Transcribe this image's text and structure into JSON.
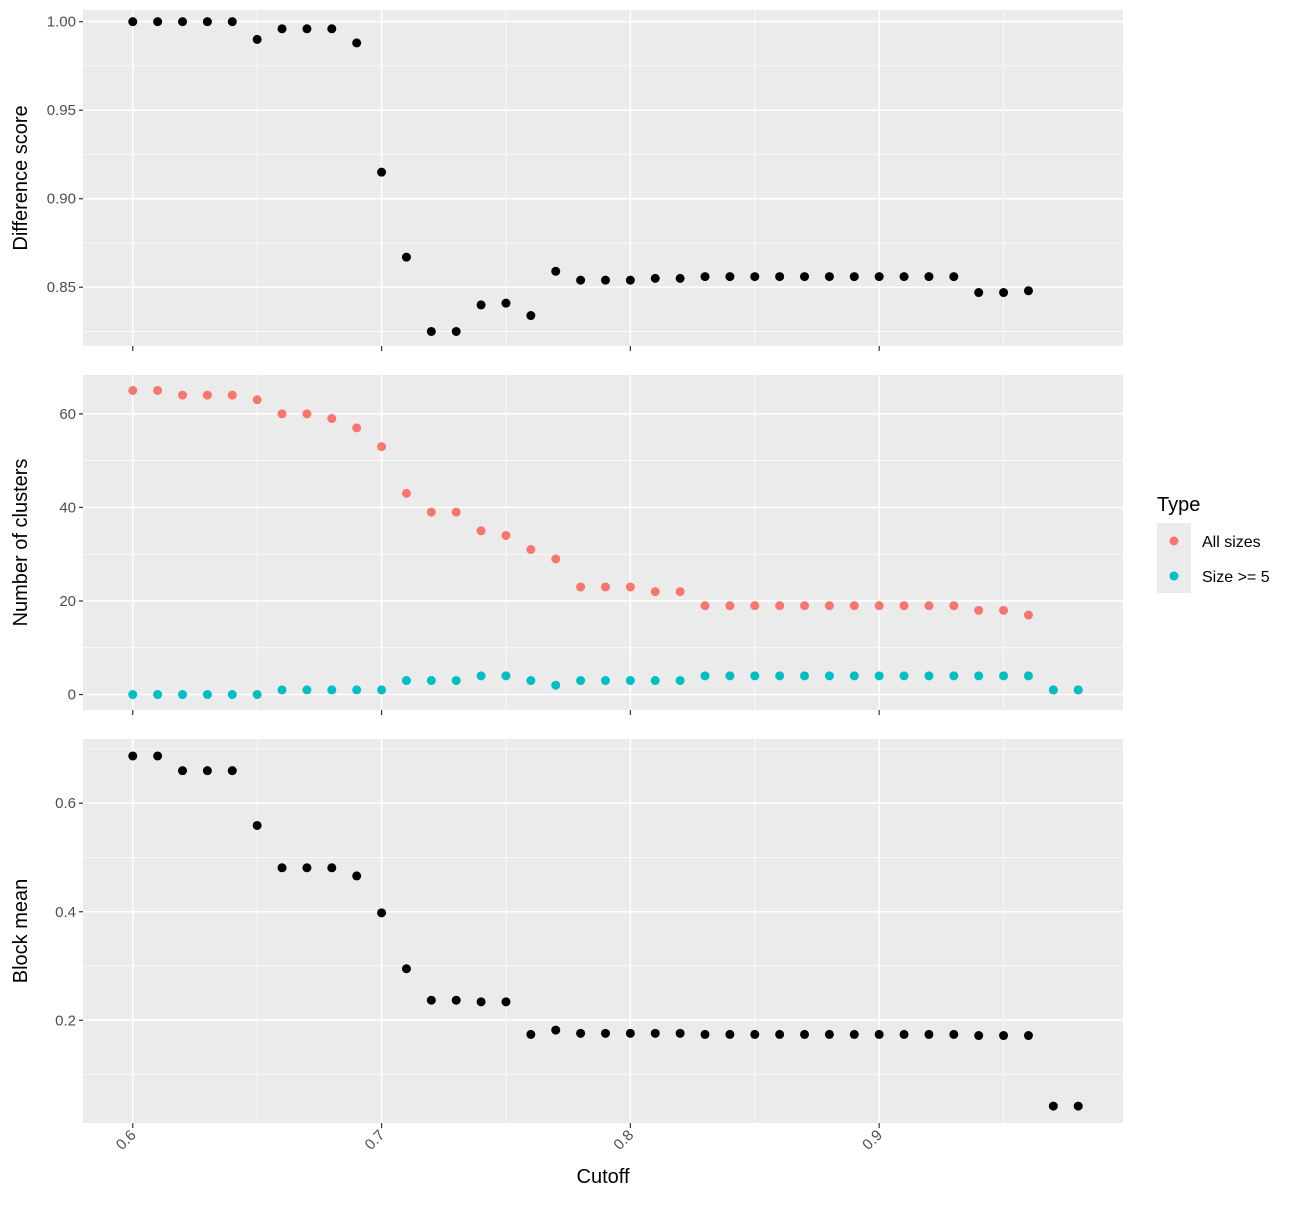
{
  "chart_data": [
    {
      "type": "scatter",
      "ylabel": "Difference score",
      "xlim": [
        0.58,
        0.998
      ],
      "ylim": [
        0.8168,
        1.0066
      ],
      "yticks": [
        0.85,
        0.9,
        0.95,
        1.0
      ],
      "ytick_labels": [
        "0.85",
        "0.90",
        "0.95",
        "1.00"
      ],
      "xticks": [
        0.6,
        0.7,
        0.8,
        0.9
      ],
      "grid": true,
      "series": [
        {
          "color": "#000000",
          "x": [
            0.6,
            0.61,
            0.62,
            0.63,
            0.64,
            0.65,
            0.66,
            0.67,
            0.68,
            0.69,
            0.7,
            0.71,
            0.72,
            0.73,
            0.74,
            0.75,
            0.76,
            0.77,
            0.78,
            0.79,
            0.8,
            0.81,
            0.82,
            0.83,
            0.84,
            0.85,
            0.86,
            0.87,
            0.88,
            0.89,
            0.9,
            0.91,
            0.92,
            0.93,
            0.94,
            0.95,
            0.96
          ],
          "y": [
            1.0,
            1.0,
            1.0,
            1.0,
            1.0,
            0.99,
            0.996,
            0.996,
            0.996,
            0.988,
            0.915,
            0.867,
            0.825,
            0.825,
            0.84,
            0.841,
            0.834,
            0.859,
            0.854,
            0.854,
            0.854,
            0.855,
            0.855,
            0.856,
            0.856,
            0.856,
            0.856,
            0.856,
            0.856,
            0.856,
            0.856,
            0.856,
            0.856,
            0.856,
            0.847,
            0.847,
            0.848
          ]
        }
      ]
    },
    {
      "type": "scatter",
      "ylabel": "Number of clusters",
      "xlim": [
        0.58,
        0.998
      ],
      "ylim": [
        -3.3,
        68.3
      ],
      "yticks": [
        0,
        20,
        40,
        60
      ],
      "ytick_labels": [
        "0",
        "20",
        "40",
        "60"
      ],
      "xticks": [
        0.6,
        0.7,
        0.8,
        0.9
      ],
      "grid": true,
      "series": [
        {
          "name": "All sizes",
          "color": "#F8766D",
          "x": [
            0.6,
            0.61,
            0.62,
            0.63,
            0.64,
            0.65,
            0.66,
            0.67,
            0.68,
            0.69,
            0.7,
            0.71,
            0.72,
            0.73,
            0.74,
            0.75,
            0.76,
            0.77,
            0.78,
            0.79,
            0.8,
            0.81,
            0.82,
            0.83,
            0.84,
            0.85,
            0.86,
            0.87,
            0.88,
            0.89,
            0.9,
            0.91,
            0.92,
            0.93,
            0.94,
            0.95,
            0.96,
            0.97,
            0.98
          ],
          "y": [
            65,
            65,
            64,
            64,
            64,
            63,
            60,
            60,
            59,
            57,
            53,
            43,
            39,
            39,
            35,
            34,
            31,
            29,
            23,
            23,
            23,
            22,
            22,
            19,
            19,
            19,
            19,
            19,
            19,
            19,
            19,
            19,
            19,
            19,
            18,
            18,
            17,
            1,
            1
          ]
        },
        {
          "name": "Size >= 5",
          "color": "#00BFC4",
          "x": [
            0.6,
            0.61,
            0.62,
            0.63,
            0.64,
            0.65,
            0.66,
            0.67,
            0.68,
            0.69,
            0.7,
            0.71,
            0.72,
            0.73,
            0.74,
            0.75,
            0.76,
            0.77,
            0.78,
            0.79,
            0.8,
            0.81,
            0.82,
            0.83,
            0.84,
            0.85,
            0.86,
            0.87,
            0.88,
            0.89,
            0.9,
            0.91,
            0.92,
            0.93,
            0.94,
            0.95,
            0.96,
            0.97,
            0.98
          ],
          "y": [
            0,
            0,
            0,
            0,
            0,
            0,
            1,
            1,
            1,
            1,
            1,
            3,
            3,
            3,
            4,
            4,
            3,
            2,
            3,
            3,
            3,
            3,
            3,
            4,
            4,
            4,
            4,
            4,
            4,
            4,
            4,
            4,
            4,
            4,
            4,
            4,
            4,
            1,
            1
          ]
        }
      ]
    },
    {
      "type": "scatter",
      "ylabel": "Block mean",
      "xlabel": "Cutoff",
      "xlim": [
        0.58,
        0.998
      ],
      "ylim": [
        0.0108,
        0.7183
      ],
      "yticks": [
        0.2,
        0.4,
        0.6
      ],
      "ytick_labels": [
        "0.2",
        "0.4",
        "0.6"
      ],
      "xticks": [
        0.6,
        0.7,
        0.8,
        0.9
      ],
      "xtick_labels": [
        "0.6",
        "0.7",
        "0.8",
        "0.9"
      ],
      "grid": true,
      "series": [
        {
          "color": "#000000",
          "x": [
            0.6,
            0.61,
            0.62,
            0.63,
            0.64,
            0.65,
            0.66,
            0.67,
            0.68,
            0.69,
            0.7,
            0.71,
            0.72,
            0.73,
            0.74,
            0.75,
            0.76,
            0.77,
            0.78,
            0.79,
            0.8,
            0.81,
            0.82,
            0.83,
            0.84,
            0.85,
            0.86,
            0.87,
            0.88,
            0.89,
            0.9,
            0.91,
            0.92,
            0.93,
            0.94,
            0.95,
            0.96,
            0.97,
            0.98
          ],
          "y": [
            0.687,
            0.687,
            0.66,
            0.66,
            0.66,
            0.559,
            0.481,
            0.481,
            0.481,
            0.466,
            0.398,
            0.295,
            0.237,
            0.237,
            0.234,
            0.234,
            0.174,
            0.182,
            0.176,
            0.176,
            0.176,
            0.176,
            0.176,
            0.174,
            0.174,
            0.174,
            0.174,
            0.174,
            0.174,
            0.174,
            0.174,
            0.174,
            0.174,
            0.174,
            0.172,
            0.172,
            0.172,
            0.042,
            0.042
          ]
        }
      ]
    }
  ],
  "legend": {
    "title": "Type",
    "placement": "right",
    "items": [
      {
        "label": "All sizes",
        "color": "#F8766D"
      },
      {
        "label": "Size >= 5",
        "color": "#00BFC4"
      }
    ]
  }
}
